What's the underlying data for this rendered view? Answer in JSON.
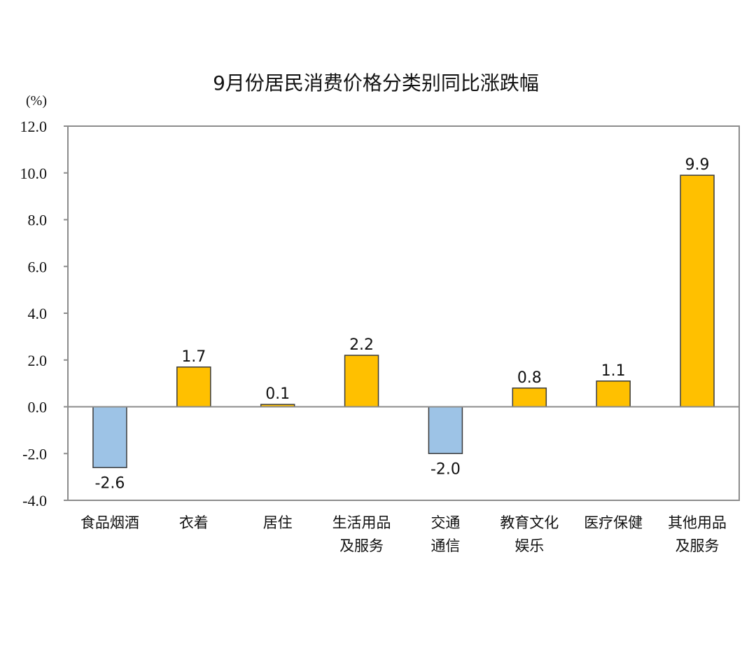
{
  "chart_data": {
    "type": "bar",
    "title": "9月份居民消费价格分类别同比涨跌幅",
    "ylabel": "(%)",
    "xlabel": "",
    "ylim": [
      -4.0,
      12.0
    ],
    "yticks": [
      "12.0",
      "10.0",
      "8.0",
      "6.0",
      "4.0",
      "2.0",
      "0.0",
      "-2.0",
      "-4.0"
    ],
    "ytick_values": [
      12,
      10,
      8,
      6,
      4,
      2,
      0,
      -2,
      -4
    ],
    "grid": false,
    "categories": [
      [
        "食品烟酒"
      ],
      [
        "衣着"
      ],
      [
        "居住"
      ],
      [
        "生活用品",
        "及服务"
      ],
      [
        "交通",
        "通信"
      ],
      [
        "教育文化",
        "娱乐"
      ],
      [
        "医疗保健"
      ],
      [
        "其他用品",
        "及服务"
      ]
    ],
    "values": [
      -2.6,
      1.7,
      0.1,
      2.2,
      -2.0,
      0.8,
      1.1,
      9.9
    ],
    "value_labels": [
      "-2.6",
      "1.7",
      "0.1",
      "2.2",
      "-2.0",
      "0.8",
      "1.1",
      "9.9"
    ],
    "colors": {
      "positive": "#FFC000",
      "negative": "#9DC3E6",
      "border": "#3a3a3a",
      "frame": "#8c8c8c"
    }
  }
}
